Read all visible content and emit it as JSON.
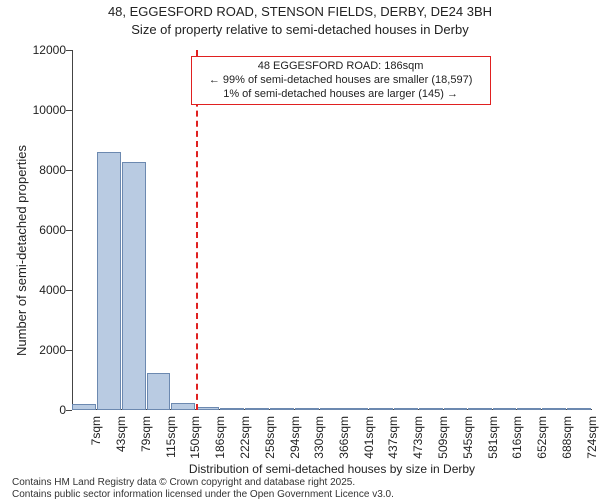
{
  "title_line1": "48, EGGESFORD ROAD, STENSON FIELDS, DERBY, DE24 3BH",
  "title_line2": "Size of property relative to semi-detached houses in Derby",
  "y_axis_label": "Number of semi-detached properties",
  "x_axis_label": "Distribution of semi-detached houses by size in Derby",
  "footer_line1": "Contains HM Land Registry data © Crown copyright and database right 2025.",
  "footer_line2": "Contains public sector information licensed under the Open Government Licence v3.0.",
  "histogram": {
    "type": "histogram",
    "x_tick_labels": [
      "7sqm",
      "43sqm",
      "79sqm",
      "115sqm",
      "150sqm",
      "186sqm",
      "222sqm",
      "258sqm",
      "294sqm",
      "330sqm",
      "366sqm",
      "401sqm",
      "437sqm",
      "473sqm",
      "509sqm",
      "545sqm",
      "581sqm",
      "616sqm",
      "652sqm",
      "688sqm",
      "724sqm"
    ],
    "bars": [
      {
        "x": 7,
        "count": 200
      },
      {
        "x": 43,
        "count": 8600
      },
      {
        "x": 79,
        "count": 8280
      },
      {
        "x": 115,
        "count": 1250
      },
      {
        "x": 150,
        "count": 250
      },
      {
        "x": 186,
        "count": 90
      },
      {
        "x": 222,
        "count": 40
      },
      {
        "x": 258,
        "count": 20
      },
      {
        "x": 294,
        "count": 10
      },
      {
        "x": 330,
        "count": 6
      },
      {
        "x": 366,
        "count": 4
      },
      {
        "x": 401,
        "count": 3
      },
      {
        "x": 437,
        "count": 2
      },
      {
        "x": 473,
        "count": 2
      },
      {
        "x": 509,
        "count": 1
      },
      {
        "x": 545,
        "count": 1
      },
      {
        "x": 581,
        "count": 1
      },
      {
        "x": 616,
        "count": 0
      },
      {
        "x": 652,
        "count": 0
      },
      {
        "x": 688,
        "count": 0
      },
      {
        "x": 724,
        "count": 0
      }
    ],
    "bar_fill": "#b9cbe2",
    "bar_stroke": "#6c89b0",
    "x_min": 7,
    "x_max": 760,
    "y_min": 0,
    "y_max": 12000,
    "y_ticks": [
      0,
      2000,
      4000,
      6000,
      8000,
      10000,
      12000
    ],
    "bar_width_data": 36,
    "background": "#ffffff",
    "axis_color": "#444444",
    "tick_font_size": 12,
    "label_font_size": 13
  },
  "marker": {
    "x_value": 186,
    "line_color": "#e02020",
    "box_border": "#e02020",
    "box_bg": "#ffffff",
    "line1": "48 EGGESFORD ROAD: 186sqm",
    "line2": "← 99% of semi-detached houses are smaller (18,597)",
    "line3": "1% of semi-detached houses are larger (145) →"
  }
}
